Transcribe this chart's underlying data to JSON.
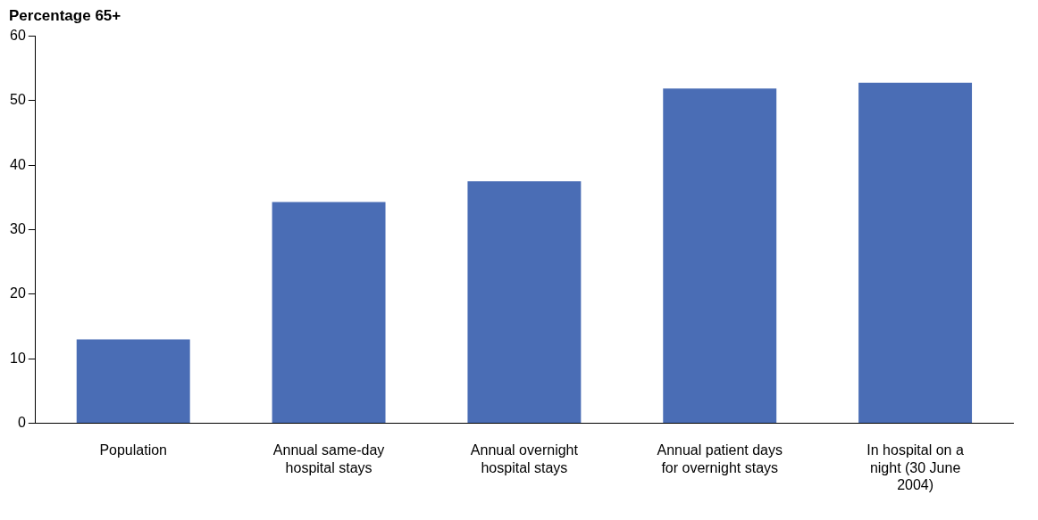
{
  "chart_data": {
    "type": "bar",
    "ylabel": "Percentage 65+",
    "categories": [
      "Population",
      "Annual same-day hospital stays",
      "Annual overnight hospital stays",
      "Annual patient days for overnight stays",
      "In hospital on a night (30 June 2004)"
    ],
    "values": [
      13.0,
      34.3,
      37.5,
      51.9,
      52.8
    ],
    "color": "#4a6db5",
    "ylim": [
      0,
      60
    ],
    "yticks": [
      0,
      10,
      20,
      30,
      40,
      50,
      60
    ],
    "grid": false,
    "legend": false
  }
}
